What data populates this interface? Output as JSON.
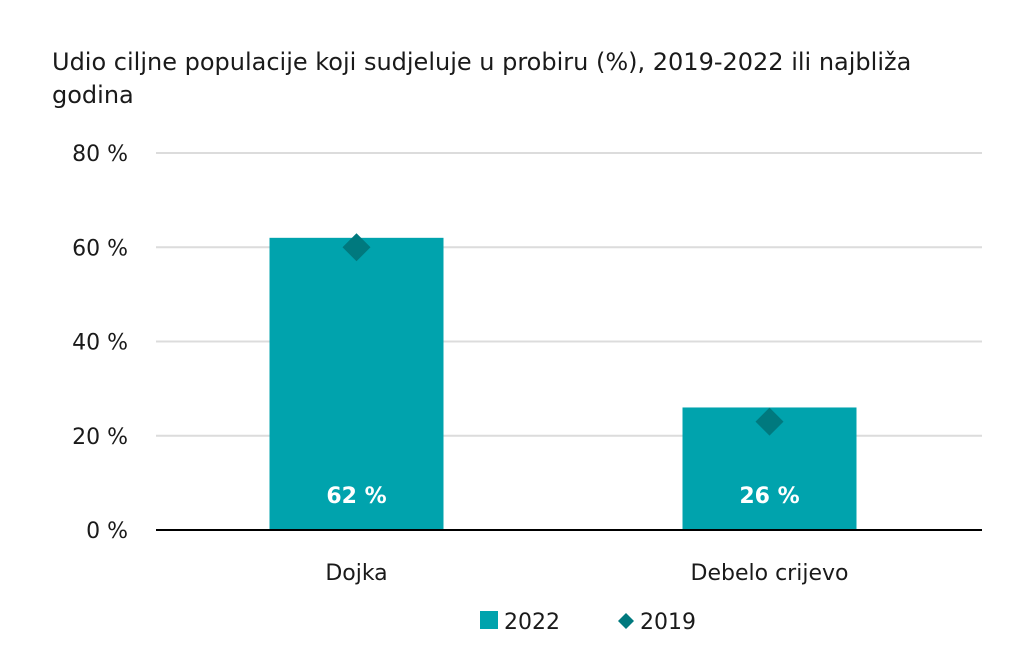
{
  "chart_data": {
    "type": "bar",
    "title": "Udio ciljne populacije koji sudjeluje u probiru (%), 2019-2022 ili najbliža godina",
    "categories": [
      "Dojka",
      "Debelo crijevo"
    ],
    "series": [
      {
        "name": "2022",
        "kind": "bar",
        "values": [
          62,
          26
        ],
        "data_labels": [
          "62 %",
          "26 %"
        ]
      },
      {
        "name": "2019",
        "kind": "marker-diamond",
        "values": [
          60,
          23
        ]
      }
    ],
    "ylim": [
      0,
      80
    ],
    "yticks": [
      0,
      20,
      40,
      60,
      80
    ],
    "ytick_labels": [
      "0 %",
      "20 %",
      "40 %",
      "60 %",
      "80 %"
    ],
    "grid": true,
    "legend_position": "bottom",
    "colors": {
      "bar": "#00a3ad",
      "marker": "#00797e",
      "grid": "#dcdcdc",
      "axis": "#000000"
    }
  }
}
